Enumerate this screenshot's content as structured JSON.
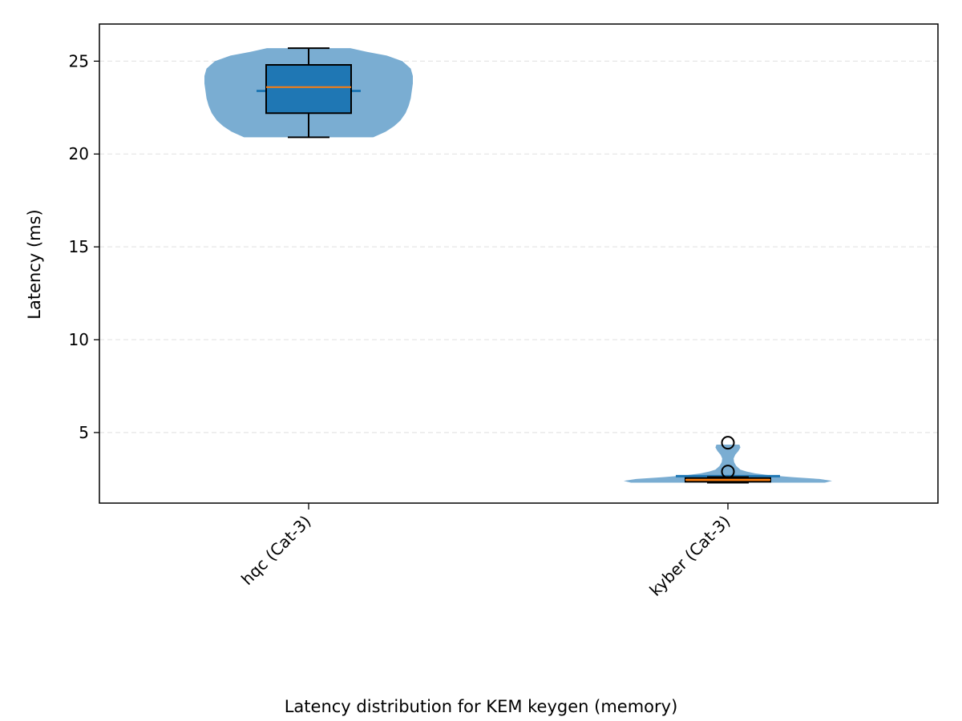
{
  "caption": "Latency distribution for KEM keygen (memory)",
  "chart_data": {
    "type": "violin",
    "title": "",
    "xlabel": "",
    "ylabel": "Latency (ms)",
    "ylim": [
      1.2,
      27.0
    ],
    "yticks": [
      5,
      10,
      15,
      20,
      25
    ],
    "grid": "y-dashed",
    "categories": [
      "hqc (Cat-3)",
      "kyber (Cat-3)"
    ],
    "distributions": [
      {
        "category": "hqc (Cat-3)",
        "min": 20.9,
        "q1": 22.2,
        "median": 23.6,
        "mean": 23.4,
        "q3": 24.8,
        "max": 25.7,
        "outliers": [],
        "density": [
          [
            20.9,
            0.62
          ],
          [
            21.2,
            0.74
          ],
          [
            21.5,
            0.82
          ],
          [
            21.8,
            0.88
          ],
          [
            22.2,
            0.93
          ],
          [
            22.6,
            0.96
          ],
          [
            23.0,
            0.98
          ],
          [
            23.4,
            0.99
          ],
          [
            23.8,
            1.0
          ],
          [
            24.2,
            1.0
          ],
          [
            24.6,
            0.98
          ],
          [
            25.0,
            0.9
          ],
          [
            25.3,
            0.75
          ],
          [
            25.5,
            0.56
          ],
          [
            25.7,
            0.4
          ]
        ]
      },
      {
        "category": "kyber (Cat-3)",
        "min": 2.3,
        "q1": 2.35,
        "median": 2.45,
        "mean": 2.65,
        "q3": 2.55,
        "max": 2.6,
        "outliers": [
          2.9,
          4.45
        ],
        "density": [
          [
            2.3,
            0.93
          ],
          [
            2.4,
            1.0
          ],
          [
            2.5,
            0.88
          ],
          [
            2.6,
            0.62
          ],
          [
            2.7,
            0.4
          ],
          [
            2.8,
            0.26
          ],
          [
            2.9,
            0.18
          ],
          [
            3.0,
            0.12
          ],
          [
            3.2,
            0.08
          ],
          [
            3.4,
            0.06
          ],
          [
            3.6,
            0.055
          ],
          [
            3.8,
            0.07
          ],
          [
            4.0,
            0.1
          ],
          [
            4.2,
            0.12
          ],
          [
            4.35,
            0.11
          ]
        ]
      }
    ],
    "colors": {
      "violin": "#7aadd2",
      "box": "#1f77b4",
      "median": "#ff7f0e",
      "mean": "#1f77b4",
      "whisker": "#000000",
      "grid": "#e6e6e6"
    }
  }
}
